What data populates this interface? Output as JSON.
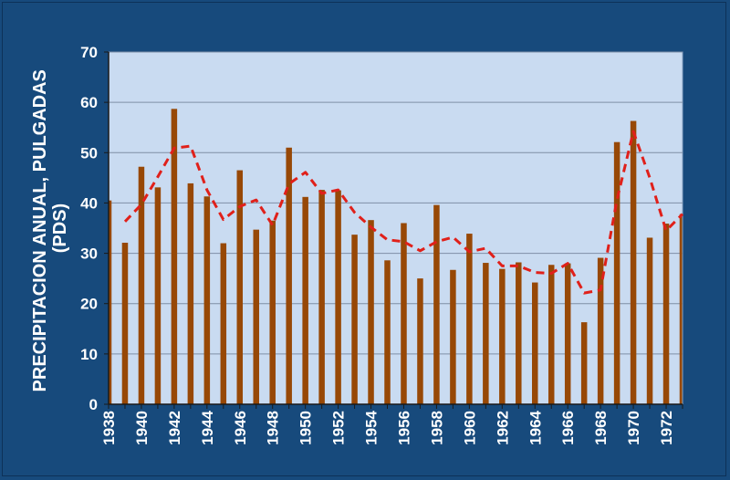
{
  "chart_data": {
    "type": "bar",
    "title": "",
    "ylabel_line1": "PRECIPITACION ANUAL, PULGADAS",
    "ylabel_line2": "(PDS)",
    "xlabel": "",
    "ylim": [
      0,
      70
    ],
    "yticks": [
      0,
      10,
      20,
      30,
      40,
      50,
      60,
      70
    ],
    "xtick_labels": [
      "1938",
      "1940",
      "1942",
      "1944",
      "1946",
      "1948",
      "1950",
      "1952",
      "1954",
      "1956",
      "1958",
      "1960",
      "1962",
      "1964",
      "1966",
      "1968",
      "1970",
      "1972"
    ],
    "grid": true,
    "categories": [
      "1938",
      "1939",
      "1940",
      "1941",
      "1942",
      "1943",
      "1944",
      "1945",
      "1946",
      "1947",
      "1948",
      "1949",
      "1950",
      "1951",
      "1952",
      "1953",
      "1954",
      "1955",
      "1956",
      "1957",
      "1958",
      "1959",
      "1960",
      "1961",
      "1962",
      "1963",
      "1964",
      "1965",
      "1966",
      "1967",
      "1968",
      "1969",
      "1970",
      "1971",
      "1972",
      "1973"
    ],
    "series": [
      {
        "values": [
          40.5,
          32.1,
          47.2,
          43.1,
          58.7,
          43.9,
          41.3,
          32.0,
          46.5,
          34.7,
          36.5,
          51.0,
          41.2,
          42.6,
          42.5,
          33.7,
          36.6,
          28.6,
          36.0,
          25.0,
          39.6,
          26.7,
          33.9,
          28.1,
          26.9,
          28.2,
          24.2,
          27.7,
          28.0,
          16.3,
          29.1,
          52.1,
          56.3,
          33.1,
          35.9,
          37.8
        ],
        "color": "#974806"
      },
      {
        "type": "line",
        "style": "dashed",
        "x": [
          "1939",
          "1940",
          "1941",
          "1942",
          "1943",
          "1944",
          "1945",
          "1946",
          "1947",
          "1948",
          "1949",
          "1950",
          "1951",
          "1952",
          "1953",
          "1954",
          "1955",
          "1956",
          "1957",
          "1958",
          "1959",
          "1960",
          "1961",
          "1962",
          "1963",
          "1964",
          "1965",
          "1966",
          "1967",
          "1968",
          "1969",
          "1970",
          "1971",
          "1972",
          "1973"
        ],
        "values": [
          36.3,
          39.7,
          45.2,
          50.9,
          51.3,
          42.6,
          36.7,
          39.3,
          40.6,
          35.6,
          43.8,
          46.1,
          41.9,
          42.6,
          38.1,
          35.2,
          32.7,
          32.3,
          30.5,
          32.3,
          33.2,
          30.3,
          31.0,
          27.5,
          27.5,
          26.2,
          26.0,
          28.0,
          22.1,
          22.7,
          40.6,
          54.2,
          45.0,
          34.5,
          37.8
        ],
        "color": "#e0201a"
      }
    ]
  }
}
